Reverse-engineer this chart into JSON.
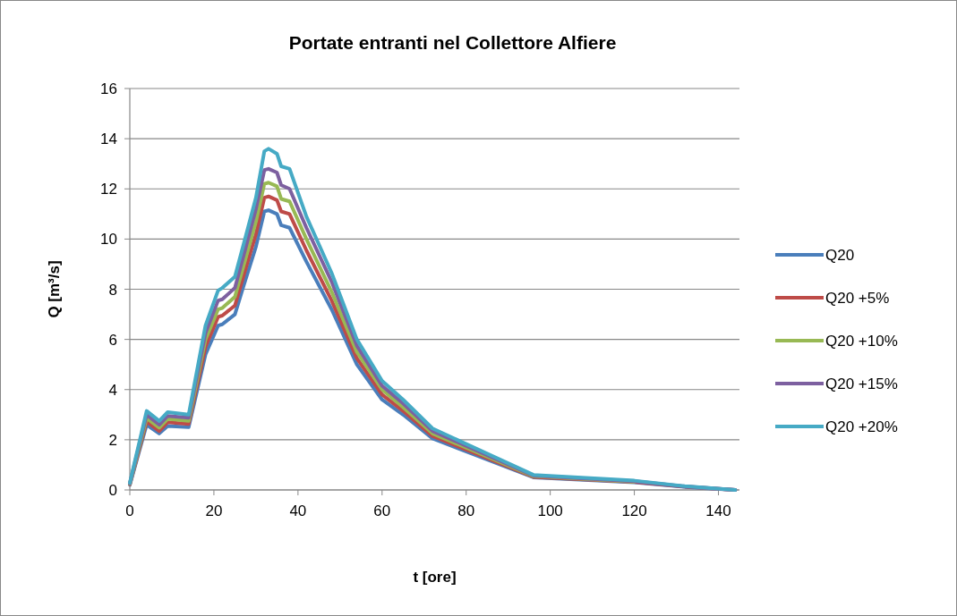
{
  "chart_data": {
    "type": "line",
    "title": "Portate entranti nel Collettore Alfiere",
    "xlabel": "t [ore]",
    "ylabel": "Q [m³/s]",
    "x": [
      0,
      4,
      7,
      9,
      14,
      18,
      21,
      22,
      25,
      27,
      30,
      32,
      33,
      35,
      36,
      38,
      42,
      48,
      54,
      60,
      65,
      72,
      96,
      120,
      132,
      144
    ],
    "series": [
      {
        "name": "Q20",
        "color": "#4a7ebb",
        "values": [
          0.2,
          2.6,
          2.25,
          2.55,
          2.5,
          5.4,
          6.55,
          6.6,
          7.0,
          8.1,
          9.7,
          11.1,
          11.15,
          11.0,
          10.55,
          10.45,
          9.1,
          7.2,
          5.0,
          3.6,
          3.0,
          2.05,
          0.5,
          0.3,
          0.12,
          0
        ]
      },
      {
        "name": "Q20 +5%",
        "color": "#be4b48",
        "values": [
          0.22,
          2.73,
          2.35,
          2.7,
          2.63,
          5.7,
          6.9,
          6.95,
          7.35,
          8.5,
          10.2,
          11.65,
          11.7,
          11.55,
          11.1,
          11.0,
          9.55,
          7.55,
          5.25,
          3.8,
          3.15,
          2.15,
          0.52,
          0.32,
          0.13,
          0
        ]
      },
      {
        "name": "Q20 +10%",
        "color": "#98b954",
        "values": [
          0.24,
          2.86,
          2.48,
          2.83,
          2.75,
          6.0,
          7.2,
          7.25,
          7.7,
          8.9,
          10.7,
          12.2,
          12.25,
          12.1,
          11.6,
          11.5,
          10.0,
          7.9,
          5.5,
          4.0,
          3.3,
          2.25,
          0.55,
          0.33,
          null,
          null
        ]
      },
      {
        "name": "Q20 +15%",
        "color": "#7d60a0",
        "values": [
          0.26,
          3.0,
          2.6,
          2.95,
          2.88,
          6.25,
          7.55,
          7.6,
          8.05,
          9.3,
          11.2,
          12.75,
          12.8,
          12.65,
          12.15,
          12.0,
          10.45,
          8.3,
          5.75,
          4.15,
          3.45,
          2.35,
          0.57,
          0.35,
          0.14,
          0
        ]
      },
      {
        "name": "Q20 +20%",
        "color": "#46aac5",
        "values": [
          0.28,
          3.15,
          2.75,
          3.1,
          3.0,
          6.55,
          7.95,
          8.05,
          8.5,
          9.75,
          11.65,
          13.5,
          13.6,
          13.4,
          12.9,
          12.8,
          10.9,
          8.65,
          6.0,
          4.35,
          3.6,
          2.45,
          0.6,
          0.37,
          0.15,
          0
        ]
      }
    ],
    "xlim": [
      0,
      145
    ],
    "xticks": [
      0,
      20,
      40,
      60,
      80,
      100,
      120,
      140
    ],
    "ylim": [
      0,
      16
    ],
    "yticks": [
      0,
      2,
      4,
      6,
      8,
      10,
      12,
      14,
      16
    ],
    "grid": "y",
    "legend": "right",
    "line_style": "solid",
    "marker": "none"
  }
}
